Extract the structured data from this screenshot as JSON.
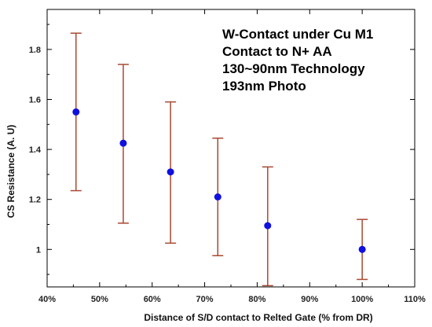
{
  "chart_data": {
    "type": "scatter",
    "title": "",
    "xlabel": "Distance of S/D contact to Relted Gate (% from DR)",
    "ylabel": "CS Resistance (A. U)",
    "xlim": [
      40,
      110
    ],
    "ylim": [
      0.85,
      1.96
    ],
    "x_ticks": [
      40,
      50,
      60,
      70,
      80,
      90,
      100,
      110
    ],
    "x_tick_labels": [
      "40%",
      "50%",
      "60%",
      "70%",
      "80%",
      "90%",
      "100%",
      "110%"
    ],
    "y_ticks": [
      1.0,
      1.2,
      1.4,
      1.6,
      1.8
    ],
    "y_tick_labels": [
      "1",
      "1.2",
      "1.4",
      "1.6",
      "1.8"
    ],
    "grid": false,
    "marker_color": "#1010e0",
    "errorbar_color": "#a84a33",
    "points": [
      {
        "x": 45.5,
        "y": 1.55,
        "ymin": 1.235,
        "ymax": 1.865
      },
      {
        "x": 54.5,
        "y": 1.425,
        "ymin": 1.105,
        "ymax": 1.74
      },
      {
        "x": 63.5,
        "y": 1.31,
        "ymin": 1.025,
        "ymax": 1.59
      },
      {
        "x": 72.5,
        "y": 1.21,
        "ymin": 0.975,
        "ymax": 1.445
      },
      {
        "x": 82,
        "y": 1.095,
        "ymin": 0.855,
        "ymax": 1.33
      },
      {
        "x": 100,
        "y": 1.0,
        "ymin": 0.88,
        "ymax": 1.12
      }
    ],
    "annotations": [
      "W-Contact under Cu M1",
      "Contact to N+ AA",
      "130~90nm Technology",
      "193nm Photo"
    ]
  }
}
